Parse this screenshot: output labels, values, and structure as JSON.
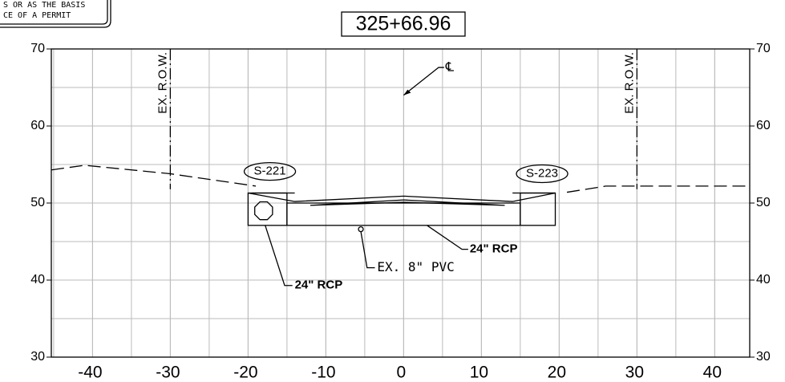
{
  "header": {
    "note_lines": [
      "S OR AS THE BASIS",
      "CE OF A PERMIT"
    ],
    "station": "325+66.96"
  },
  "axes": {
    "xlim": [
      -45.3,
      44.5
    ],
    "ylim": [
      30,
      70
    ],
    "xticks": [
      -40,
      -30,
      -20,
      -10,
      0,
      10,
      20,
      30,
      40
    ],
    "yticks": [
      30,
      40,
      50,
      60,
      70
    ]
  },
  "labels": {
    "centerline": "℄",
    "row_left": "EX. R.O.W.",
    "row_right": "EX. R.O.W.",
    "structure_left": "S-221",
    "structure_right": "S-223",
    "pipe_left": "24\" RCP",
    "pipe_right": "24\" RCP",
    "existing_pipe": "EX. 8\" PVC"
  }
}
